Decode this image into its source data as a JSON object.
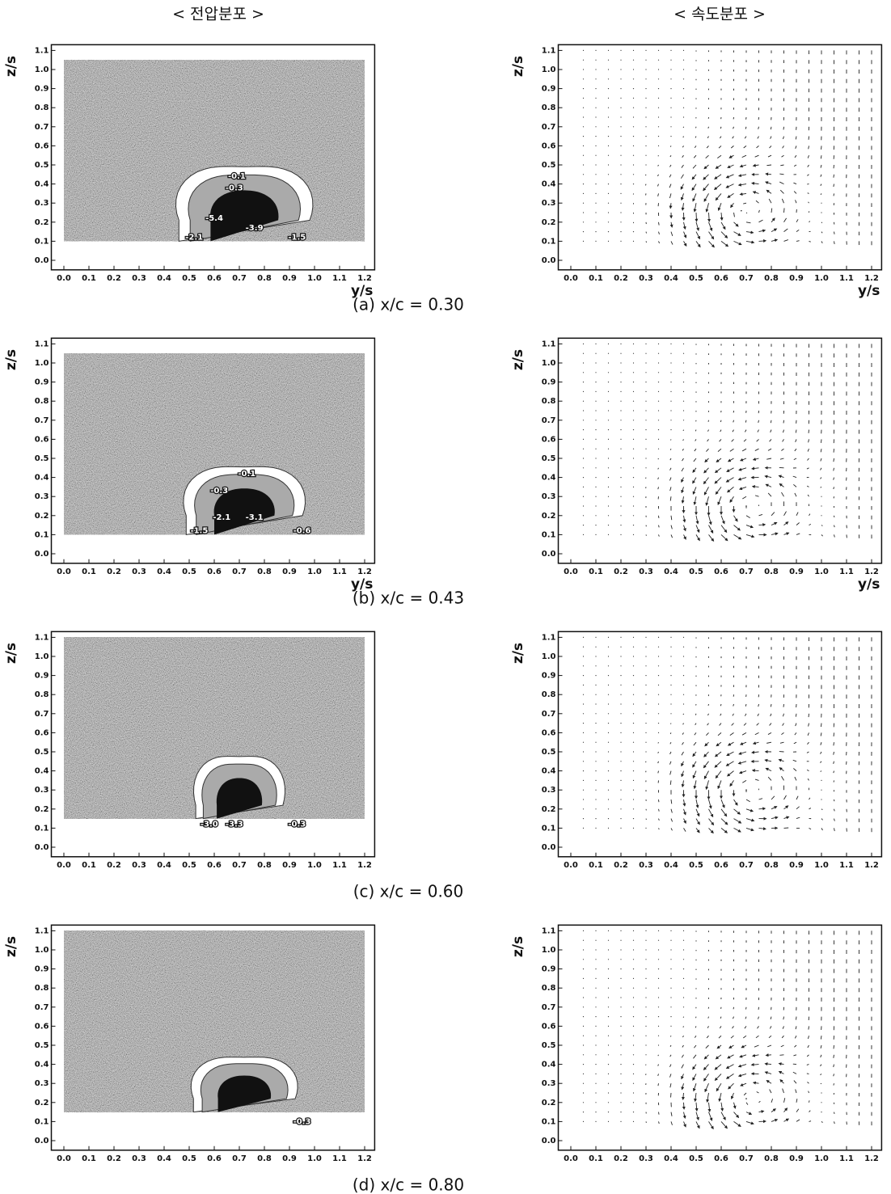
{
  "headers": [
    "< 전압분포 >",
    "< 속도분포 >"
  ],
  "axes": {
    "xlim": [
      -0.05,
      1.24
    ],
    "ylim": [
      -0.05,
      1.13
    ],
    "xticks": [
      {
        "value": 0,
        "label": "0.0"
      },
      0.1,
      0.2,
      0.3,
      0.4,
      0.5,
      0.6,
      0.7,
      0.8,
      0.9,
      {
        "value": 1,
        "label": "1.0"
      },
      1.1,
      1.2
    ],
    "yticks": [
      {
        "value": 0,
        "label": "0.0"
      },
      0.1,
      0.2,
      0.3,
      0.4,
      0.5,
      0.6,
      0.7,
      0.8,
      0.9,
      {
        "value": 1,
        "label": "1.0"
      },
      1.1
    ],
    "ylabel": "z/s"
  },
  "rows": [
    {
      "caption": "(a) x/c = 0.30",
      "xlabel": "y/s",
      "pressure": {
        "area_z": [
          0.1,
          1.05
        ],
        "core": {
          "y": 0.72,
          "z": 0.21,
          "ry": 0.18,
          "rz": 0.22
        },
        "contour_labels": [
          {
            "text": "-0.1",
            "y": 0.69,
            "z": 0.44
          },
          {
            "text": "-0.3",
            "y": 0.68,
            "z": 0.38
          },
          {
            "text": "-5.4",
            "y": 0.6,
            "z": 0.22
          },
          {
            "text": "-3.9",
            "y": 0.76,
            "z": 0.17
          },
          {
            "text": "-2.1",
            "y": 0.52,
            "z": 0.12
          },
          {
            "text": "-1.5",
            "y": 0.93,
            "z": 0.12
          }
        ]
      },
      "velocity": {
        "vortex": {
          "y": 0.68,
          "z": 0.26
        }
      }
    },
    {
      "caption": "(b) x/c = 0.43",
      "xlabel": "y/s",
      "pressure": {
        "area_z": [
          0.1,
          1.05
        ],
        "core": {
          "y": 0.72,
          "z": 0.2,
          "ry": 0.16,
          "rz": 0.2
        },
        "contour_labels": [
          {
            "text": "-0.1",
            "y": 0.73,
            "z": 0.42
          },
          {
            "text": "-0.3",
            "y": 0.62,
            "z": 0.33
          },
          {
            "text": "-2.1",
            "y": 0.63,
            "z": 0.19
          },
          {
            "text": "-3.1",
            "y": 0.76,
            "z": 0.19
          },
          {
            "text": "-1.5",
            "y": 0.54,
            "z": 0.12
          },
          {
            "text": "-0.6",
            "y": 0.95,
            "z": 0.12
          }
        ]
      },
      "velocity": {
        "vortex": {
          "y": 0.7,
          "z": 0.25
        }
      }
    },
    {
      "caption": "(c) x/c = 0.60",
      "pressure": {
        "area_z": [
          0.15,
          1.1
        ],
        "core": {
          "y": 0.7,
          "z": 0.22,
          "ry": 0.12,
          "rz": 0.2
        },
        "contour_labels": [
          {
            "text": "-3.0",
            "y": 0.58,
            "z": 0.12
          },
          {
            "text": "-3.3",
            "y": 0.68,
            "z": 0.12
          },
          {
            "text": "-0.3",
            "y": 0.93,
            "z": 0.12
          }
        ]
      },
      "velocity": {
        "vortex": {
          "y": 0.7,
          "z": 0.3
        }
      }
    },
    {
      "caption": "(d) x/c = 0.80",
      "pressure": {
        "area_z": [
          0.15,
          1.1
        ],
        "core": {
          "y": 0.72,
          "z": 0.22,
          "ry": 0.14,
          "rz": 0.17
        },
        "contour_labels": [
          {
            "text": "-0.3",
            "y": 0.95,
            "z": 0.1
          }
        ]
      },
      "velocity": {
        "vortex": {
          "y": 0.7,
          "z": 0.22
        }
      }
    }
  ]
}
